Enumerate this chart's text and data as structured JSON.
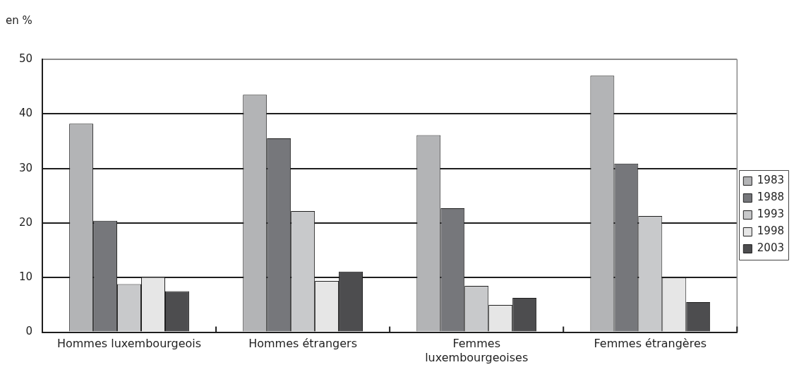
{
  "chart_data": {
    "type": "bar",
    "ylabel": "en %",
    "categories": [
      "Hommes luxembourgeois",
      "Hommes étrangers",
      "Femmes luxembourgeoises",
      "Femmes étrangères"
    ],
    "series": [
      {
        "name": "1983",
        "color": "#b3b4b6",
        "values": [
          38.2,
          43.5,
          36.1,
          47.0
        ]
      },
      {
        "name": "1988",
        "color": "#76777b",
        "values": [
          20.4,
          35.5,
          22.7,
          30.9
        ]
      },
      {
        "name": "1993",
        "color": "#c8c9cb",
        "values": [
          8.8,
          22.2,
          8.5,
          21.3
        ]
      },
      {
        "name": "1998",
        "color": "#e6e6e6",
        "values": [
          10.1,
          9.4,
          5.0,
          10.0
        ]
      },
      {
        "name": "2003",
        "color": "#4d4d4f",
        "values": [
          7.5,
          11.1,
          6.3,
          5.5
        ]
      }
    ],
    "ylim": [
      0,
      50
    ],
    "yticks": [
      0,
      10,
      20,
      30,
      40,
      50
    ],
    "grid": "y",
    "legend": "right"
  }
}
